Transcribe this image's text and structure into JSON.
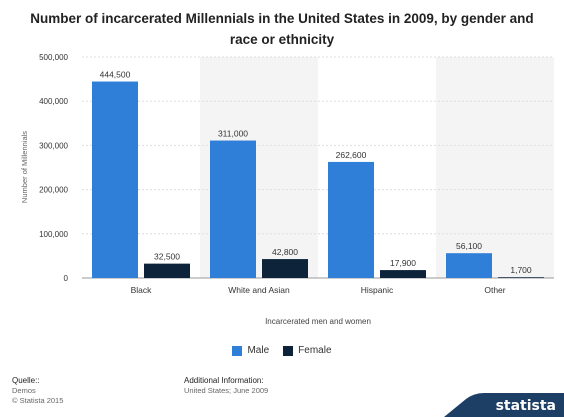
{
  "chart_data": {
    "type": "bar",
    "title": "Number of incarcerated Millennials in the United States in 2009, by gender and race or ethnicity",
    "xlabel": "Incarcerated men and women",
    "ylabel": "Number of Millennials",
    "categories": [
      "Black",
      "White and Asian",
      "Hispanic",
      "Other"
    ],
    "series": [
      {
        "name": "Male",
        "values": [
          444500,
          311000,
          262600,
          56100
        ],
        "labels": [
          "444,500",
          "311,000",
          "262,600",
          "56,100"
        ],
        "color": "#2f7ed8"
      },
      {
        "name": "Female",
        "values": [
          32500,
          42800,
          17900,
          1700
        ],
        "labels": [
          "32,500",
          "42,800",
          "17,900",
          "1,700"
        ],
        "color": "#0d233a"
      }
    ],
    "ylim": [
      0,
      500000
    ],
    "yticks": [
      0,
      100000,
      200000,
      300000,
      400000,
      500000
    ],
    "ytick_labels": [
      "0",
      "100,000",
      "200,000",
      "300,000",
      "400,000",
      "500,000"
    ],
    "grid": true,
    "legend_position": "bottom"
  },
  "footer": {
    "source_label": "Quelle::",
    "source_name": "Demos",
    "copyright": "© Statista 2015",
    "additional_label": "Additional Information:",
    "additional_text": "United States; June 2009"
  },
  "brand": {
    "name": "statista"
  },
  "colors": {
    "male": "#2f7ed8",
    "female": "#0d233a",
    "brand_bg": "#1d3f66"
  }
}
